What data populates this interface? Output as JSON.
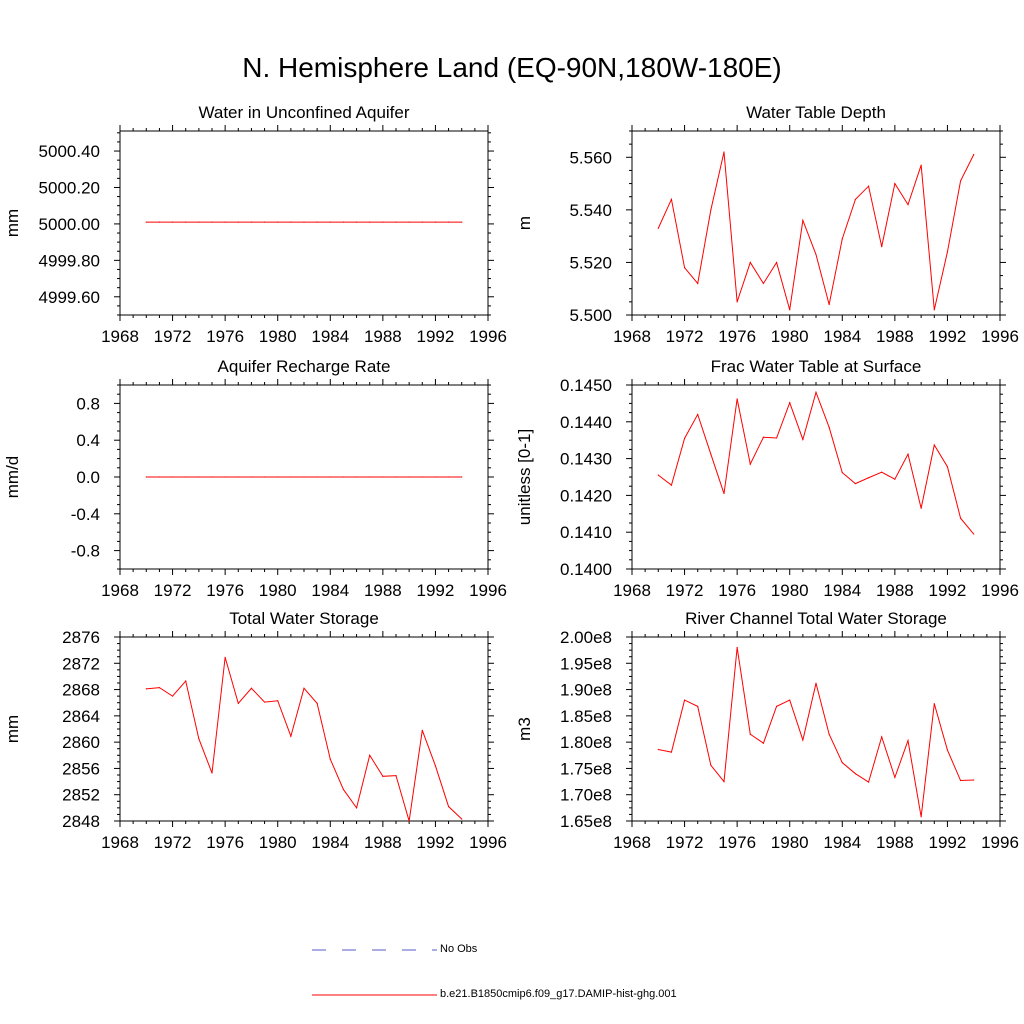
{
  "page_title": "N. Hemisphere Land (EQ-90N,180W-180E)",
  "legend": {
    "items": [
      {
        "label": "No Obs",
        "color": "#5a5ac8",
        "style": "dashed"
      },
      {
        "label": "b.e21.B1850cmip6.f09_g17.DAMIP-hist-ghg.001",
        "color": "#ff0000",
        "style": "solid"
      }
    ]
  },
  "chart_data": [
    {
      "type": "line",
      "title": "Water in Unconfined Aquifer",
      "ylabel": "mm",
      "xlim": [
        1968,
        1996
      ],
      "xticks": [
        1968,
        1972,
        1976,
        1980,
        1984,
        1988,
        1992,
        1996
      ],
      "ylim": [
        4999.5,
        5000.51
      ],
      "yticks": [
        4999.6,
        4999.8,
        5000.0,
        5000.2,
        5000.4
      ],
      "ytick_labels": [
        "4999.60",
        "4999.80",
        "5000.00",
        "5000.20",
        "5000.40"
      ],
      "x": [
        1970,
        1971,
        1972,
        1973,
        1974,
        1975,
        1976,
        1977,
        1978,
        1979,
        1980,
        1981,
        1982,
        1983,
        1984,
        1985,
        1986,
        1987,
        1988,
        1989,
        1990,
        1991,
        1992,
        1993,
        1994
      ],
      "series": [
        {
          "name": "b.e21.B1850cmip6.f09_g17.DAMIP-hist-ghg.001",
          "color": "#ff0000",
          "values": [
            5000.01,
            5000.01,
            5000.01,
            5000.01,
            5000.01,
            5000.01,
            5000.01,
            5000.01,
            5000.01,
            5000.01,
            5000.01,
            5000.01,
            5000.01,
            5000.01,
            5000.01,
            5000.01,
            5000.01,
            5000.01,
            5000.01,
            5000.01,
            5000.01,
            5000.01,
            5000.01,
            5000.01,
            5000.01
          ]
        }
      ]
    },
    {
      "type": "line",
      "title": "Water Table Depth",
      "ylabel": "m",
      "xlim": [
        1968,
        1996
      ],
      "xticks": [
        1968,
        1972,
        1976,
        1980,
        1984,
        1988,
        1992,
        1996
      ],
      "ylim": [
        5.5,
        5.57
      ],
      "yticks": [
        5.5,
        5.52,
        5.54,
        5.56
      ],
      "ytick_labels": [
        "5.500",
        "5.520",
        "5.540",
        "5.560"
      ],
      "x": [
        1970,
        1971,
        1972,
        1973,
        1974,
        1975,
        1976,
        1977,
        1978,
        1979,
        1980,
        1981,
        1982,
        1983,
        1984,
        1985,
        1986,
        1987,
        1988,
        1989,
        1990,
        1991,
        1992,
        1993,
        1994
      ],
      "series": [
        {
          "name": "b.e21.B1850cmip6.f09_g17.DAMIP-hist-ghg.001",
          "color": "#ff0000",
          "values": [
            5.533,
            5.544,
            5.518,
            5.512,
            5.54,
            5.562,
            5.505,
            5.52,
            5.512,
            5.52,
            5.502,
            5.536,
            5.523,
            5.504,
            5.529,
            5.544,
            5.549,
            5.526,
            5.55,
            5.542,
            5.557,
            5.502,
            5.524,
            5.551,
            5.561
          ]
        }
      ]
    },
    {
      "type": "line",
      "title": "Aquifer Recharge Rate",
      "ylabel": "mm/d",
      "xlim": [
        1968,
        1996
      ],
      "xticks": [
        1968,
        1972,
        1976,
        1980,
        1984,
        1988,
        1992,
        1996
      ],
      "ylim": [
        -1.0,
        1.0
      ],
      "yticks": [
        -0.8,
        -0.4,
        0.0,
        0.4,
        0.8
      ],
      "ytick_labels": [
        "-0.8",
        "-0.4",
        "0.0",
        "0.4",
        "0.8"
      ],
      "x": [
        1970,
        1971,
        1972,
        1973,
        1974,
        1975,
        1976,
        1977,
        1978,
        1979,
        1980,
        1981,
        1982,
        1983,
        1984,
        1985,
        1986,
        1987,
        1988,
        1989,
        1990,
        1991,
        1992,
        1993,
        1994
      ],
      "series": [
        {
          "name": "b.e21.B1850cmip6.f09_g17.DAMIP-hist-ghg.001",
          "color": "#ff0000",
          "values": [
            0,
            0,
            0,
            0,
            0,
            0,
            0,
            0,
            0,
            0,
            0,
            0,
            0,
            0,
            0,
            0,
            0,
            0,
            0,
            0,
            0,
            0,
            0,
            0,
            0
          ]
        }
      ]
    },
    {
      "type": "line",
      "title": "Frac Water Table at Surface",
      "ylabel": "unitless [0-1]",
      "xlim": [
        1968,
        1996
      ],
      "xticks": [
        1968,
        1972,
        1976,
        1980,
        1984,
        1988,
        1992,
        1996
      ],
      "ylim": [
        0.14,
        0.145
      ],
      "yticks": [
        0.14,
        0.141,
        0.142,
        0.143,
        0.144,
        0.145
      ],
      "ytick_labels": [
        "0.1400",
        "0.1410",
        "0.1420",
        "0.1430",
        "0.1440",
        "0.1450"
      ],
      "x": [
        1970,
        1971,
        1972,
        1973,
        1974,
        1975,
        1976,
        1977,
        1978,
        1979,
        1980,
        1981,
        1982,
        1983,
        1984,
        1985,
        1986,
        1987,
        1988,
        1989,
        1990,
        1991,
        1992,
        1993,
        1994
      ],
      "series": [
        {
          "name": "b.e21.B1850cmip6.f09_g17.DAMIP-hist-ghg.001",
          "color": "#ff0000",
          "values": [
            0.14255,
            0.14228,
            0.14355,
            0.1442,
            0.14312,
            0.14205,
            0.14462,
            0.14285,
            0.14358,
            0.14356,
            0.14452,
            0.14352,
            0.1448,
            0.14385,
            0.14262,
            0.14232,
            0.14248,
            0.14263,
            0.14244,
            0.14312,
            0.14165,
            0.14337,
            0.14278,
            0.14138,
            0.14095
          ]
        }
      ]
    },
    {
      "type": "line",
      "title": "Total Water Storage",
      "ylabel": "mm",
      "xlim": [
        1968,
        1996
      ],
      "xticks": [
        1968,
        1972,
        1976,
        1980,
        1984,
        1988,
        1992,
        1996
      ],
      "ylim": [
        2848,
        2876
      ],
      "yticks": [
        2848,
        2852,
        2856,
        2860,
        2864,
        2868,
        2872,
        2876
      ],
      "ytick_labels": [
        "2848",
        "2852",
        "2856",
        "2860",
        "2864",
        "2868",
        "2872",
        "2876"
      ],
      "x": [
        1970,
        1971,
        1972,
        1973,
        1974,
        1975,
        1976,
        1977,
        1978,
        1979,
        1980,
        1981,
        1982,
        1983,
        1984,
        1985,
        1986,
        1987,
        1988,
        1989,
        1990,
        1991,
        1992,
        1993,
        1994
      ],
      "series": [
        {
          "name": "b.e21.B1850cmip6.f09_g17.DAMIP-hist-ghg.001",
          "color": "#ff0000",
          "values": [
            2868.1,
            2868.3,
            2867.0,
            2869.3,
            2860.5,
            2855.3,
            2872.9,
            2865.9,
            2868.2,
            2866.1,
            2866.3,
            2860.9,
            2868.2,
            2865.9,
            2857.4,
            2852.8,
            2850.0,
            2858.0,
            2854.8,
            2854.9,
            2848.0,
            2861.8,
            2856.4,
            2850.2,
            2848.3
          ]
        }
      ]
    },
    {
      "type": "line",
      "title": "River Channel Total Water Storage",
      "ylabel": "m3",
      "xlim": [
        1968,
        1996
      ],
      "xticks": [
        1968,
        1972,
        1976,
        1980,
        1984,
        1988,
        1992,
        1996
      ],
      "ylim": [
        165000000,
        200000000
      ],
      "yticks": [
        165000000,
        170000000,
        175000000,
        180000000,
        185000000,
        190000000,
        195000000,
        200000000
      ],
      "ytick_labels": [
        "1.65e8",
        "1.70e8",
        "1.75e8",
        "1.80e8",
        "1.85e8",
        "1.90e8",
        "1.95e8",
        "2.00e8"
      ],
      "x": [
        1970,
        1971,
        1972,
        1973,
        1974,
        1975,
        1976,
        1977,
        1978,
        1979,
        1980,
        1981,
        1982,
        1983,
        1984,
        1985,
        1986,
        1987,
        1988,
        1989,
        1990,
        1991,
        1992,
        1993,
        1994
      ],
      "series": [
        {
          "name": "b.e21.B1850cmip6.f09_g17.DAMIP-hist-ghg.001",
          "color": "#ff0000",
          "values": [
            178600000,
            178100000,
            188000000,
            186800000,
            175600000,
            172500000,
            198000000,
            181500000,
            179800000,
            186800000,
            188000000,
            180400000,
            191200000,
            181500000,
            176100000,
            174000000,
            172400000,
            181000000,
            173300000,
            180300000,
            165800000,
            187300000,
            178500000,
            172700000,
            172800000
          ]
        }
      ]
    }
  ]
}
